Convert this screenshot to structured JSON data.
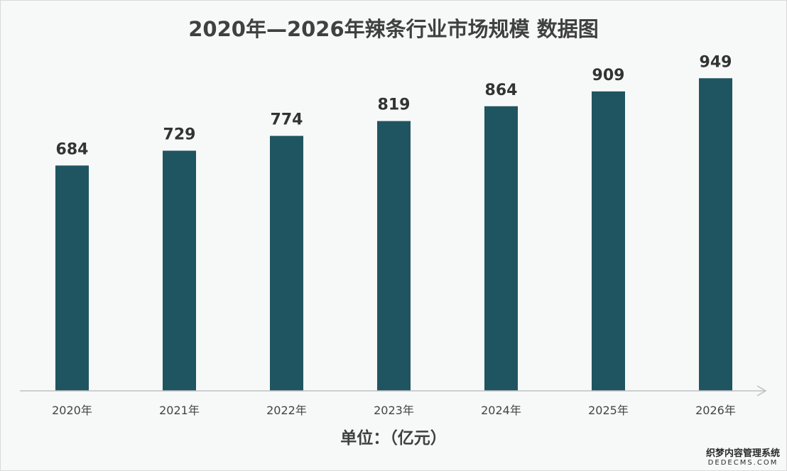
{
  "chart_data": {
    "type": "bar",
    "title": "2020年—2026年辣条行业市场规模 数据图",
    "categories": [
      "2020年",
      "2021年",
      "2022年",
      "2023年",
      "2024年",
      "2025年",
      "2026年"
    ],
    "values": [
      684,
      729,
      774,
      819,
      864,
      909,
      949
    ],
    "xlabel": "单位：（亿元）",
    "ylabel": "",
    "ylim": [
      0,
      1000
    ],
    "grid": false,
    "legend": "none",
    "data_labels": true,
    "colors": {
      "bar": "#1f5560",
      "axis": "#bfbfbf",
      "label": "#333333",
      "background": "#f7f8f8"
    }
  },
  "watermark": {
    "line1": "织梦内容管理系统",
    "line2": "DEDECMS.COM"
  }
}
